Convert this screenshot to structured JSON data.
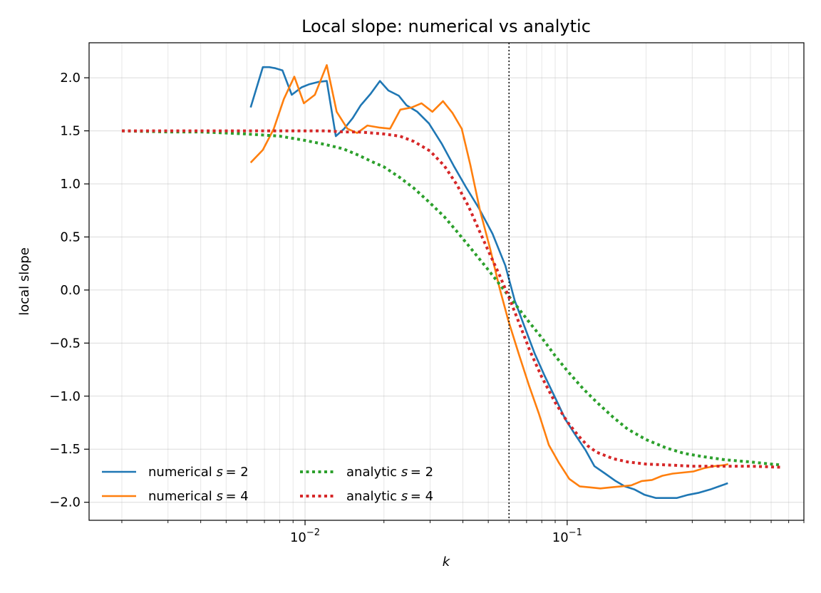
{
  "chart_data": {
    "type": "line",
    "title": "Local slope: numerical vs analytic",
    "xlabel": "k",
    "ylabel": "local slope",
    "xscale": "log",
    "xlim": [
      0.0015,
      0.8
    ],
    "ylim": [
      -2.17,
      2.33
    ],
    "x_tick_labels": [
      {
        "value": 0.01,
        "base": "10",
        "exp": "−2"
      },
      {
        "value": 0.1,
        "base": "10",
        "exp": "−1"
      }
    ],
    "y_ticks": [
      -2.0,
      -1.5,
      -1.0,
      -0.5,
      0.0,
      0.5,
      1.0,
      1.5,
      2.0
    ],
    "y_tick_labels": [
      "−2.0",
      "−1.5",
      "−1.0",
      "−0.5",
      "0.0",
      "0.5",
      "1.0",
      "1.5",
      "2.0"
    ],
    "grid": true,
    "legend_position": "lower-left",
    "vline": {
      "x": 0.06,
      "style": "dotted",
      "color": "#000000"
    },
    "series": [
      {
        "name": "numerical s = 2",
        "legend_prefix": "numerical ",
        "legend_var": "s",
        "legend_val": "= 2",
        "color": "#1f77b4",
        "style": "solid",
        "x": [
          0.0062,
          0.0069,
          0.0073,
          0.0077,
          0.0082,
          0.0089,
          0.0097,
          0.0104,
          0.0112,
          0.0121,
          0.0131,
          0.0141,
          0.0152,
          0.0163,
          0.0178,
          0.0193,
          0.0208,
          0.0228,
          0.0244,
          0.0268,
          0.0297,
          0.0332,
          0.0371,
          0.0411,
          0.0461,
          0.0519,
          0.0581,
          0.0631,
          0.0691,
          0.0752,
          0.0821,
          0.0902,
          0.0985,
          0.1071,
          0.1176,
          0.1271,
          0.1397,
          0.1531,
          0.1659,
          0.1807,
          0.1975,
          0.2182,
          0.2395,
          0.2617,
          0.2893,
          0.3185,
          0.3509,
          0.3796,
          0.4101
        ],
        "y": [
          1.72,
          2.1,
          2.1,
          2.09,
          2.07,
          1.84,
          1.91,
          1.94,
          1.96,
          1.97,
          1.45,
          1.52,
          1.62,
          1.74,
          1.85,
          1.97,
          1.88,
          1.83,
          1.74,
          1.68,
          1.57,
          1.38,
          1.16,
          0.97,
          0.77,
          0.53,
          0.23,
          -0.1,
          -0.36,
          -0.6,
          -0.81,
          -1.02,
          -1.22,
          -1.36,
          -1.51,
          -1.66,
          -1.73,
          -1.8,
          -1.85,
          -1.88,
          -1.93,
          -1.96,
          -1.96,
          -1.96,
          -1.93,
          -1.91,
          -1.88,
          -1.85,
          -1.82
        ]
      },
      {
        "name": "numerical s = 4",
        "legend_prefix": "numerical ",
        "legend_var": "s",
        "legend_val": "= 4",
        "color": "#ff7f0e",
        "style": "solid",
        "x": [
          0.0062,
          0.0069,
          0.0076,
          0.0083,
          0.0091,
          0.0099,
          0.0109,
          0.0121,
          0.0132,
          0.0145,
          0.0158,
          0.0173,
          0.0193,
          0.0211,
          0.0231,
          0.0255,
          0.0278,
          0.0306,
          0.0336,
          0.0365,
          0.0396,
          0.0427,
          0.0465,
          0.0508,
          0.0552,
          0.0597,
          0.0653,
          0.0713,
          0.0781,
          0.0851,
          0.0931,
          0.1019,
          0.1117,
          0.1222,
          0.1338,
          0.1465,
          0.1604,
          0.1757,
          0.1924,
          0.2106,
          0.2307,
          0.2527,
          0.2767,
          0.3029,
          0.3317,
          0.3633,
          0.3978,
          0.4116
        ],
        "y": [
          1.2,
          1.32,
          1.52,
          1.8,
          2.01,
          1.76,
          1.84,
          2.12,
          1.68,
          1.52,
          1.48,
          1.55,
          1.53,
          1.52,
          1.7,
          1.72,
          1.76,
          1.68,
          1.78,
          1.67,
          1.52,
          1.18,
          0.75,
          0.39,
          0.02,
          -0.29,
          -0.6,
          -0.89,
          -1.17,
          -1.46,
          -1.63,
          -1.78,
          -1.85,
          -1.86,
          -1.87,
          -1.86,
          -1.85,
          -1.84,
          -1.8,
          -1.79,
          -1.75,
          -1.73,
          -1.72,
          -1.71,
          -1.68,
          -1.66,
          -1.65,
          -1.64
        ]
      },
      {
        "name": "analytic s = 2",
        "legend_prefix": "analytic ",
        "legend_var": "s",
        "legend_val": "= 2",
        "color": "#2ca02c",
        "style": "dotted",
        "x": [
          0.002,
          0.003,
          0.004,
          0.005,
          0.006,
          0.008,
          0.01,
          0.012,
          0.014,
          0.016,
          0.018,
          0.02,
          0.023,
          0.026,
          0.03,
          0.034,
          0.038,
          0.042,
          0.046,
          0.05,
          0.055,
          0.06,
          0.066,
          0.072,
          0.08,
          0.09,
          0.1,
          0.115,
          0.13,
          0.15,
          0.17,
          0.2,
          0.24,
          0.28,
          0.33,
          0.4,
          0.5,
          0.6,
          0.66
        ],
        "y": [
          1.5,
          1.49,
          1.49,
          1.48,
          1.47,
          1.45,
          1.41,
          1.37,
          1.33,
          1.27,
          1.21,
          1.16,
          1.06,
          0.96,
          0.82,
          0.69,
          0.55,
          0.42,
          0.3,
          0.19,
          0.06,
          -0.06,
          -0.19,
          -0.31,
          -0.45,
          -0.62,
          -0.76,
          -0.93,
          -1.06,
          -1.2,
          -1.31,
          -1.41,
          -1.49,
          -1.54,
          -1.57,
          -1.6,
          -1.62,
          -1.64,
          -1.65
        ]
      },
      {
        "name": "analytic s = 4",
        "legend_prefix": "analytic ",
        "legend_var": "s",
        "legend_val": "= 4",
        "color": "#d62728",
        "style": "dotted",
        "x": [
          0.002,
          0.004,
          0.006,
          0.008,
          0.01,
          0.012,
          0.014,
          0.016,
          0.018,
          0.02,
          0.023,
          0.026,
          0.03,
          0.034,
          0.038,
          0.042,
          0.046,
          0.05,
          0.055,
          0.06,
          0.066,
          0.072,
          0.08,
          0.09,
          0.1,
          0.11,
          0.12,
          0.13,
          0.15,
          0.17,
          0.2,
          0.25,
          0.3,
          0.4,
          0.5,
          0.66
        ],
        "y": [
          1.5,
          1.5,
          1.5,
          1.5,
          1.5,
          1.5,
          1.49,
          1.49,
          1.48,
          1.47,
          1.45,
          1.4,
          1.31,
          1.17,
          0.99,
          0.79,
          0.57,
          0.37,
          0.15,
          -0.07,
          -0.33,
          -0.57,
          -0.82,
          -1.06,
          -1.24,
          -1.37,
          -1.47,
          -1.53,
          -1.59,
          -1.62,
          -1.64,
          -1.65,
          -1.66,
          -1.66,
          -1.66,
          -1.67
        ]
      }
    ]
  }
}
